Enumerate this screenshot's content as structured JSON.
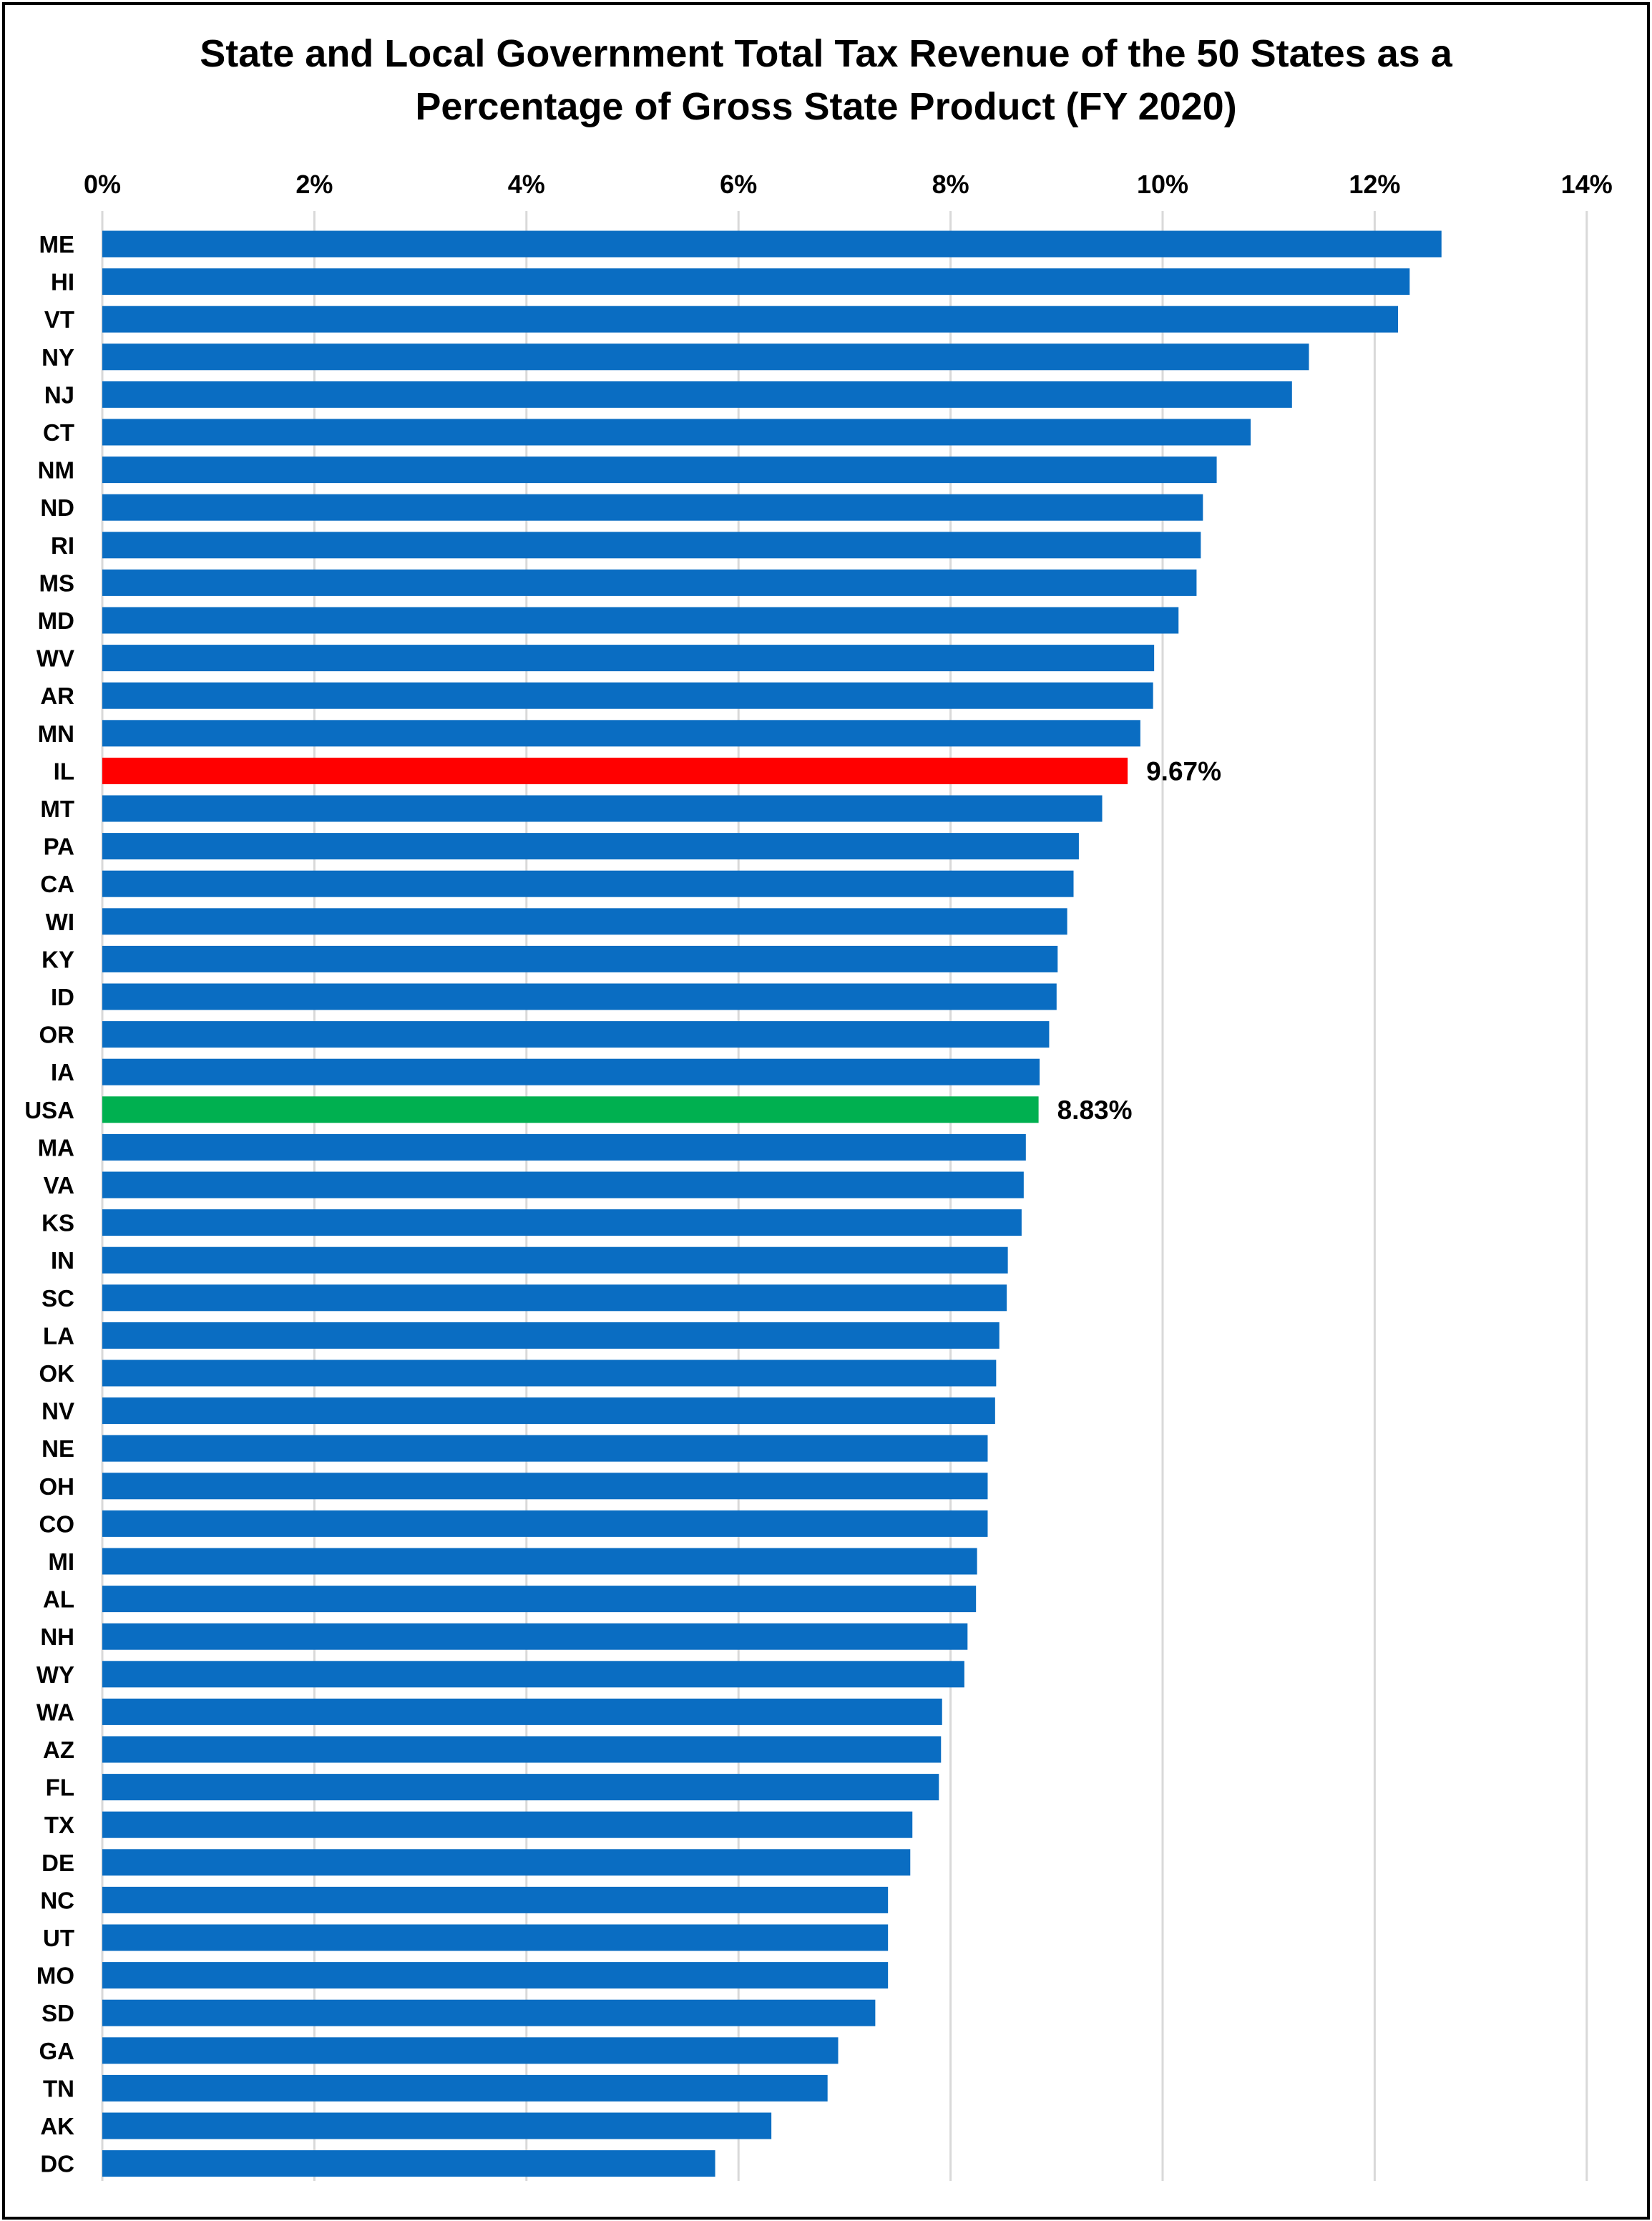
{
  "chart_data": {
    "type": "bar",
    "orientation": "horizontal",
    "title": "State and Local Government Total Tax Revenue of the 50 States as a\nPercentage of Gross State Product (FY 2020)",
    "xlabel": "",
    "ylabel": "",
    "xlim": [
      0,
      14
    ],
    "x_ticks": [
      "0%",
      "2%",
      "4%",
      "6%",
      "8%",
      "10%",
      "12%",
      "14%"
    ],
    "x_axis_position": "top",
    "grid": true,
    "legend": "none",
    "categories": [
      "ME",
      "HI",
      "VT",
      "NY",
      "NJ",
      "CT",
      "NM",
      "ND",
      "RI",
      "MS",
      "MD",
      "WV",
      "AR",
      "MN",
      "IL",
      "MT",
      "PA",
      "CA",
      "WI",
      "KY",
      "ID",
      "OR",
      "IA",
      "USA",
      "MA",
      "VA",
      "KS",
      "IN",
      "SC",
      "LA",
      "OK",
      "NV",
      "NE",
      "OH",
      "CO",
      "MI",
      "AL",
      "NH",
      "WY",
      "WA",
      "AZ",
      "FL",
      "TX",
      "DE",
      "NC",
      "UT",
      "MO",
      "SD",
      "GA",
      "TN",
      "AK",
      "DC"
    ],
    "values": [
      12.63,
      12.33,
      12.22,
      11.38,
      11.22,
      10.83,
      10.51,
      10.38,
      10.36,
      10.32,
      10.15,
      9.92,
      9.91,
      9.79,
      9.67,
      9.43,
      9.21,
      9.16,
      9.1,
      9.01,
      9.0,
      8.93,
      8.84,
      8.83,
      8.71,
      8.69,
      8.67,
      8.54,
      8.53,
      8.46,
      8.43,
      8.42,
      8.35,
      8.35,
      8.35,
      8.25,
      8.24,
      8.16,
      8.13,
      7.92,
      7.91,
      7.89,
      7.64,
      7.62,
      7.41,
      7.41,
      7.41,
      7.29,
      6.94,
      6.84,
      6.31,
      5.78
    ],
    "data_labels": [
      {
        "category": "IL",
        "text": "9.67%"
      },
      {
        "category": "USA",
        "text": "8.83%"
      }
    ],
    "colors": {
      "default": "#0A6DC2",
      "highlights": {
        "IL": "#FF0000",
        "USA": "#00B050"
      },
      "gridline": "#D9D9D9"
    }
  }
}
